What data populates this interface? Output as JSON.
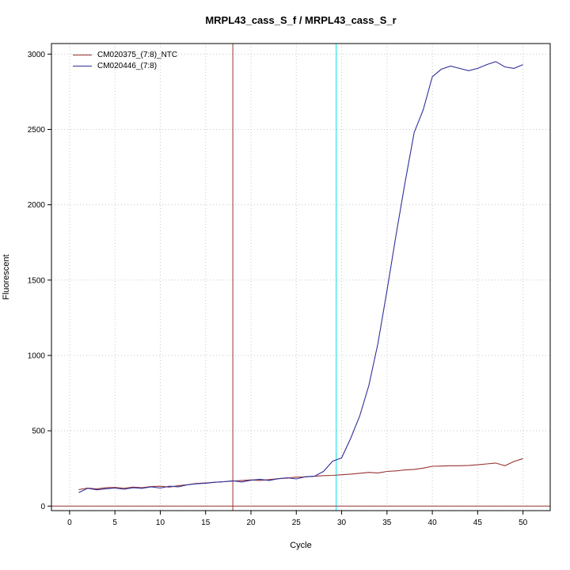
{
  "chart_data": {
    "type": "line",
    "title": "MRPL43_cass_S_f / MRPL43_cass_S_r",
    "xlabel": "Cycle",
    "ylabel": "Fluorescent",
    "xlim": [
      -2,
      53
    ],
    "ylim": [
      -30,
      3070
    ],
    "x_ticks": [
      0,
      5,
      10,
      15,
      20,
      25,
      30,
      35,
      40,
      45,
      50
    ],
    "y_ticks": [
      0,
      500,
      1000,
      1500,
      2000,
      2500,
      3000
    ],
    "grid": true,
    "grid_color": "#c8c8c8",
    "legend_position": "top-left",
    "series": [
      {
        "name": "CM020375_(7:8)_NTC",
        "color": "#993333",
        "x": [
          1,
          2,
          3,
          4,
          5,
          6,
          7,
          8,
          9,
          10,
          11,
          12,
          13,
          14,
          15,
          16,
          17,
          18,
          19,
          20,
          21,
          22,
          23,
          24,
          25,
          26,
          27,
          28,
          29,
          30,
          31,
          32,
          33,
          34,
          35,
          36,
          37,
          38,
          39,
          40,
          41,
          42,
          43,
          44,
          45,
          46,
          47,
          48,
          49,
          50
        ],
        "values": [
          110,
          120,
          114,
          122,
          124,
          118,
          126,
          122,
          130,
          132,
          126,
          136,
          142,
          150,
          154,
          158,
          162,
          166,
          170,
          174,
          170,
          176,
          182,
          186,
          192,
          194,
          198,
          202,
          204,
          208,
          212,
          218,
          224,
          220,
          230,
          234,
          240,
          244,
          252,
          264,
          266,
          268,
          268,
          270,
          274,
          280,
          286,
          268,
          296,
          315
        ]
      },
      {
        "name": "CM020446_(7:8)",
        "color": "#30309b",
        "x": [
          1,
          2,
          3,
          4,
          5,
          6,
          7,
          8,
          9,
          10,
          11,
          12,
          13,
          14,
          15,
          16,
          17,
          18,
          19,
          20,
          21,
          22,
          23,
          24,
          25,
          26,
          27,
          28,
          29,
          30,
          31,
          32,
          33,
          34,
          35,
          36,
          37,
          38,
          39,
          40,
          41,
          42,
          43,
          44,
          45,
          46,
          47,
          48,
          49,
          50
        ],
        "values": [
          90,
          118,
          108,
          115,
          120,
          112,
          122,
          118,
          128,
          120,
          132,
          128,
          142,
          148,
          152,
          158,
          162,
          168,
          160,
          172,
          178,
          170,
          182,
          188,
          180,
          195,
          198,
          230,
          298,
          320,
          450,
          600,
          800,
          1080,
          1430,
          1800,
          2150,
          2480,
          2630,
          2850,
          2900,
          2920,
          2905,
          2890,
          2905,
          2930,
          2950,
          2915,
          2905,
          2930
        ]
      }
    ],
    "vlines": [
      {
        "x": 18,
        "color": "#993333"
      },
      {
        "x": 29.4,
        "color": "#00e5ee"
      }
    ],
    "hlines": [
      {
        "y": 0,
        "color": "#993333"
      }
    ]
  }
}
